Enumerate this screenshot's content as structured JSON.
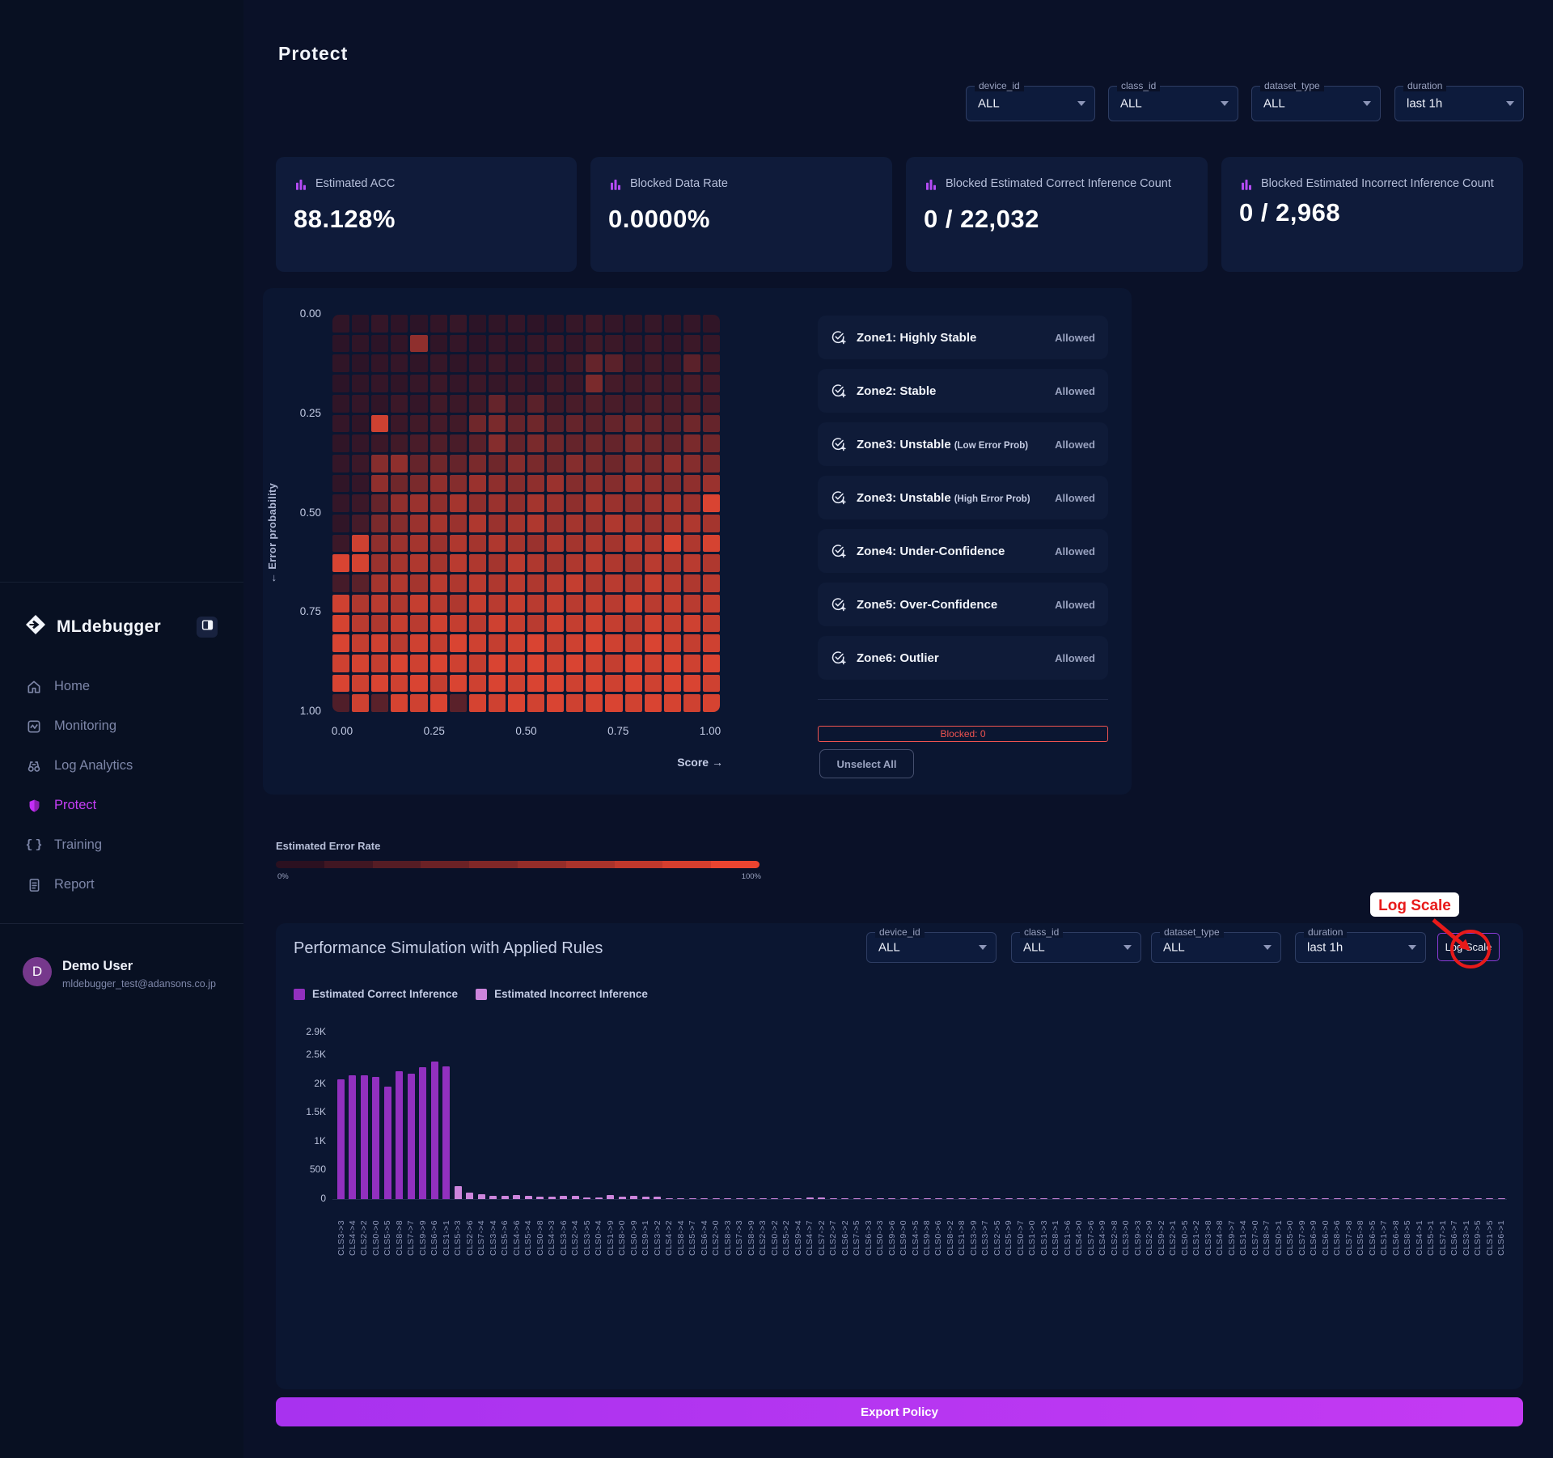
{
  "app": {
    "name": "MLdebugger"
  },
  "sidebar": {
    "items": [
      {
        "label": "Home"
      },
      {
        "label": "Monitoring"
      },
      {
        "label": "Log Analytics"
      },
      {
        "label": "Protect",
        "active": true
      },
      {
        "label": "Training"
      },
      {
        "label": "Report"
      }
    ],
    "user": {
      "name": "Demo User",
      "email": "mldebugger_test@adansons.co.jp",
      "initial": "D"
    }
  },
  "page": {
    "title": "Protect"
  },
  "filters_top": [
    {
      "label": "device_id",
      "value": "ALL"
    },
    {
      "label": "class_id",
      "value": "ALL"
    },
    {
      "label": "dataset_type",
      "value": "ALL"
    },
    {
      "label": "duration",
      "value": "last 1h"
    }
  ],
  "stats": [
    {
      "label": "Estimated ACC",
      "value": "88.128%"
    },
    {
      "label": "Blocked Data Rate",
      "value": "0.0000%"
    },
    {
      "label": "Blocked Estimated Correct Inference Count",
      "value": "0 / 22,032"
    },
    {
      "label": "Blocked Estimated Incorrect Inference Count",
      "value": "0 / 2,968"
    }
  ],
  "zones": {
    "items": [
      {
        "label": "Zone1: Highly Stable",
        "suffix": "",
        "status": "Allowed"
      },
      {
        "label": "Zone2: Stable",
        "suffix": "",
        "status": "Allowed"
      },
      {
        "label": "Zone3: Unstable",
        "suffix": "(Low Error Prob)",
        "status": "Allowed"
      },
      {
        "label": "Zone3: Unstable",
        "suffix": "(High Error Prob)",
        "status": "Allowed"
      },
      {
        "label": "Zone4: Under-Confidence",
        "suffix": "",
        "status": "Allowed"
      },
      {
        "label": "Zone5: Over-Confidence",
        "suffix": "",
        "status": "Allowed"
      },
      {
        "label": "Zone6: Outlier",
        "suffix": "",
        "status": "Allowed"
      }
    ],
    "blocked_label": "Blocked: 0",
    "unselect_all_label": "Unselect All"
  },
  "error_rate": {
    "label": "Estimated Error Rate",
    "min_label": "0%",
    "max_label": "100%",
    "gradient_start": "#2b1020",
    "gradient_end": "#ea4430",
    "steps": 10
  },
  "performance": {
    "title": "Performance Simulation with Applied Rules",
    "filters": [
      {
        "label": "device_id",
        "value": "ALL"
      },
      {
        "label": "class_id",
        "value": "ALL"
      },
      {
        "label": "dataset_type",
        "value": "ALL"
      },
      {
        "label": "duration",
        "value": "last 1h"
      }
    ],
    "log_scale_label": "Log Scale",
    "legend": [
      {
        "label": "Estimated Correct Inference",
        "color": "#9230bf"
      },
      {
        "label": "Estimated Incorrect Inference",
        "color": "#cd85dc"
      }
    ]
  },
  "annotation": {
    "label": "Log Scale",
    "color": "#e81a1a"
  },
  "export_label": "Export Policy",
  "chart_data": [
    {
      "type": "heatmap",
      "xlabel": "Score →",
      "ylabel": "← Error probability",
      "x_ticks": [
        "0.00",
        "0.25",
        "0.50",
        "0.75",
        "1.00"
      ],
      "y_ticks": [
        "0.00",
        "0.25",
        "0.50",
        "0.75",
        "1.00"
      ],
      "color_min": "#1b0f26",
      "color_max": "#ee4a33",
      "values": [
        [
          0.1,
          0.07,
          0.12,
          0.09,
          0.08,
          0.11,
          0.13,
          0.08,
          0.1,
          0.12,
          0.09,
          0.08,
          0.13,
          0.16,
          0.12,
          0.1,
          0.13,
          0.1,
          0.12,
          0.1
        ],
        [
          0.08,
          0.1,
          0.08,
          0.11,
          0.55,
          0.1,
          0.12,
          0.09,
          0.12,
          0.1,
          0.13,
          0.15,
          0.12,
          0.18,
          0.15,
          0.12,
          0.16,
          0.12,
          0.15,
          0.13
        ],
        [
          0.1,
          0.08,
          0.11,
          0.12,
          0.1,
          0.13,
          0.1,
          0.12,
          0.15,
          0.12,
          0.15,
          0.13,
          0.18,
          0.35,
          0.3,
          0.15,
          0.18,
          0.15,
          0.3,
          0.18
        ],
        [
          0.08,
          0.1,
          0.12,
          0.1,
          0.13,
          0.15,
          0.12,
          0.15,
          0.13,
          0.15,
          0.12,
          0.18,
          0.15,
          0.45,
          0.2,
          0.18,
          0.2,
          0.18,
          0.22,
          0.2
        ],
        [
          0.1,
          0.12,
          0.1,
          0.15,
          0.12,
          0.18,
          0.15,
          0.18,
          0.35,
          0.2,
          0.3,
          0.18,
          0.22,
          0.25,
          0.22,
          0.2,
          0.25,
          0.22,
          0.25,
          0.22
        ],
        [
          0.12,
          0.1,
          0.85,
          0.15,
          0.18,
          0.2,
          0.18,
          0.4,
          0.45,
          0.35,
          0.4,
          0.3,
          0.35,
          0.3,
          0.35,
          0.4,
          0.35,
          0.3,
          0.4,
          0.35
        ],
        [
          0.1,
          0.12,
          0.15,
          0.18,
          0.22,
          0.25,
          0.22,
          0.3,
          0.5,
          0.35,
          0.45,
          0.4,
          0.35,
          0.4,
          0.35,
          0.45,
          0.4,
          0.35,
          0.45,
          0.4
        ],
        [
          0.12,
          0.15,
          0.5,
          0.55,
          0.35,
          0.4,
          0.35,
          0.45,
          0.4,
          0.5,
          0.45,
          0.4,
          0.5,
          0.45,
          0.4,
          0.5,
          0.45,
          0.55,
          0.5,
          0.45
        ],
        [
          0.1,
          0.12,
          0.55,
          0.4,
          0.45,
          0.55,
          0.5,
          0.6,
          0.55,
          0.5,
          0.55,
          0.6,
          0.5,
          0.55,
          0.5,
          0.6,
          0.55,
          0.5,
          0.55,
          0.6
        ],
        [
          0.12,
          0.15,
          0.35,
          0.55,
          0.6,
          0.55,
          0.65,
          0.55,
          0.6,
          0.55,
          0.65,
          0.6,
          0.55,
          0.65,
          0.6,
          0.55,
          0.6,
          0.65,
          0.6,
          0.9
        ],
        [
          0.1,
          0.2,
          0.45,
          0.5,
          0.6,
          0.65,
          0.6,
          0.7,
          0.6,
          0.65,
          0.7,
          0.6,
          0.65,
          0.6,
          0.7,
          0.65,
          0.6,
          0.65,
          0.7,
          0.65
        ],
        [
          0.15,
          0.85,
          0.55,
          0.6,
          0.65,
          0.6,
          0.7,
          0.65,
          0.7,
          0.65,
          0.6,
          0.7,
          0.65,
          0.7,
          0.65,
          0.75,
          0.7,
          0.9,
          0.7,
          0.88
        ],
        [
          0.9,
          0.88,
          0.6,
          0.65,
          0.7,
          0.65,
          0.75,
          0.7,
          0.65,
          0.75,
          0.7,
          0.65,
          0.7,
          0.75,
          0.7,
          0.65,
          0.75,
          0.7,
          0.75,
          0.7
        ],
        [
          0.2,
          0.3,
          0.65,
          0.7,
          0.65,
          0.75,
          0.7,
          0.75,
          0.7,
          0.75,
          0.7,
          0.75,
          0.8,
          0.7,
          0.75,
          0.7,
          0.8,
          0.75,
          0.7,
          0.75
        ],
        [
          0.85,
          0.7,
          0.75,
          0.7,
          0.8,
          0.75,
          0.7,
          0.8,
          0.75,
          0.8,
          0.75,
          0.8,
          0.75,
          0.8,
          0.75,
          0.85,
          0.75,
          0.8,
          0.75,
          0.8
        ],
        [
          0.88,
          0.75,
          0.7,
          0.8,
          0.75,
          0.85,
          0.8,
          0.75,
          0.85,
          0.8,
          0.75,
          0.85,
          0.8,
          0.85,
          0.8,
          0.75,
          0.85,
          0.8,
          0.85,
          0.8
        ],
        [
          0.9,
          0.8,
          0.85,
          0.75,
          0.85,
          0.8,
          0.9,
          0.85,
          0.8,
          0.85,
          0.9,
          0.8,
          0.85,
          0.9,
          0.85,
          0.8,
          0.9,
          0.85,
          0.8,
          0.85
        ],
        [
          0.85,
          0.88,
          0.8,
          0.9,
          0.85,
          0.9,
          0.85,
          0.8,
          0.9,
          0.85,
          0.9,
          0.85,
          0.9,
          0.85,
          0.8,
          0.9,
          0.85,
          0.9,
          0.85,
          0.9
        ],
        [
          0.9,
          0.85,
          0.9,
          0.85,
          0.9,
          0.8,
          0.9,
          0.85,
          0.9,
          0.85,
          0.9,
          0.9,
          0.85,
          0.9,
          0.85,
          0.9,
          0.85,
          0.9,
          0.9,
          0.85
        ],
        [
          0.25,
          0.85,
          0.3,
          0.88,
          0.85,
          0.9,
          0.3,
          0.88,
          0.85,
          0.9,
          0.86,
          0.9,
          0.85,
          0.88,
          0.9,
          0.86,
          0.9,
          0.88,
          0.85,
          0.88
        ]
      ]
    },
    {
      "type": "bar",
      "title": "Performance Simulation with Applied Rules",
      "ylim": [
        0,
        2900
      ],
      "yticks": [
        {
          "label": "0",
          "value": 0
        },
        {
          "label": "500",
          "value": 500
        },
        {
          "label": "1K",
          "value": 1000
        },
        {
          "label": "1.5K",
          "value": 1500
        },
        {
          "label": "2K",
          "value": 2000
        },
        {
          "label": "2.5K",
          "value": 2500
        },
        {
          "label": "2.9K",
          "value": 2900
        }
      ],
      "categories": [
        "CLS3->3",
        "CLS4->4",
        "CLS2->2",
        "CLS0->0",
        "CLS5->5",
        "CLS8->8",
        "CLS7->7",
        "CLS9->9",
        "CLS6->6",
        "CLS1->1",
        "CLS5->3",
        "CLS2->6",
        "CLS7->4",
        "CLS3->4",
        "CLS5->6",
        "CLS4->6",
        "CLS5->4",
        "CLS0->8",
        "CLS4->3",
        "CLS3->6",
        "CLS2->4",
        "CLS3->5",
        "CLS0->4",
        "CLS1->9",
        "CLS8->0",
        "CLS0->9",
        "CLS9->1",
        "CLS3->2",
        "CLS4->2",
        "CLS8->4",
        "CLS5->7",
        "CLS6->4",
        "CLS2->0",
        "CLS8->3",
        "CLS7->3",
        "CLS8->9",
        "CLS2->3",
        "CLS0->2",
        "CLS5->2",
        "CLS9->4",
        "CLS4->7",
        "CLS7->2",
        "CLS2->7",
        "CLS6->2",
        "CLS7->5",
        "CLS6->3",
        "CLS0->3",
        "CLS9->6",
        "CLS9->0",
        "CLS4->5",
        "CLS9->8",
        "CLS0->6",
        "CLS8->2",
        "CLS1->8",
        "CLS3->9",
        "CLS3->7",
        "CLS2->5",
        "CLS5->9",
        "CLS0->7",
        "CLS1->0",
        "CLS1->3",
        "CLS8->1",
        "CLS1->6",
        "CLS4->0",
        "CLS7->6",
        "CLS4->9",
        "CLS2->8",
        "CLS3->0",
        "CLS9->3",
        "CLS2->9",
        "CLS9->2",
        "CLS2->1",
        "CLS0->5",
        "CLS1->2",
        "CLS3->8",
        "CLS4->8",
        "CLS9->7",
        "CLS1->4",
        "CLS7->0",
        "CLS8->7",
        "CLS0->1",
        "CLS5->0",
        "CLS7->9",
        "CLS6->9",
        "CLS6->0",
        "CLS8->6",
        "CLS7->8",
        "CLS5->8",
        "CLS6->5",
        "CLS1->7",
        "CLS6->8",
        "CLS8->5",
        "CLS4->1",
        "CLS5->1",
        "CLS7->1",
        "CLS6->7",
        "CLS3->1",
        "CLS9->5",
        "CLS1->5",
        "CLS6->1"
      ],
      "series": [
        {
          "name": "Estimated Correct Inference",
          "color": "#9230bf",
          "start_index": 0,
          "values": [
            2080,
            2150,
            2150,
            2130,
            1950,
            2230,
            2180,
            2300,
            2400,
            2310
          ]
        },
        {
          "name": "Estimated Incorrect Inference",
          "color": "#cd85dc",
          "start_index": 10,
          "values": [
            232,
            112,
            90,
            62,
            58,
            76,
            60,
            46,
            36,
            62,
            55,
            32,
            30,
            66,
            46,
            60,
            42,
            46,
            16,
            9,
            19,
            9,
            16,
            9,
            13,
            13,
            11,
            10,
            10,
            10,
            26,
            23,
            21,
            19,
            18,
            17,
            16,
            15,
            14,
            13,
            12,
            12,
            11,
            11,
            10,
            10,
            9,
            9,
            8,
            8,
            8,
            7,
            7,
            7,
            6,
            6,
            6,
            5,
            5,
            5,
            4,
            4,
            4,
            4,
            3,
            3,
            3,
            3,
            3,
            2,
            2,
            2,
            2,
            2,
            2,
            2,
            1,
            1,
            1,
            1,
            1,
            1,
            1,
            1,
            1,
            1,
            1,
            1,
            1,
            1
          ]
        }
      ]
    }
  ]
}
